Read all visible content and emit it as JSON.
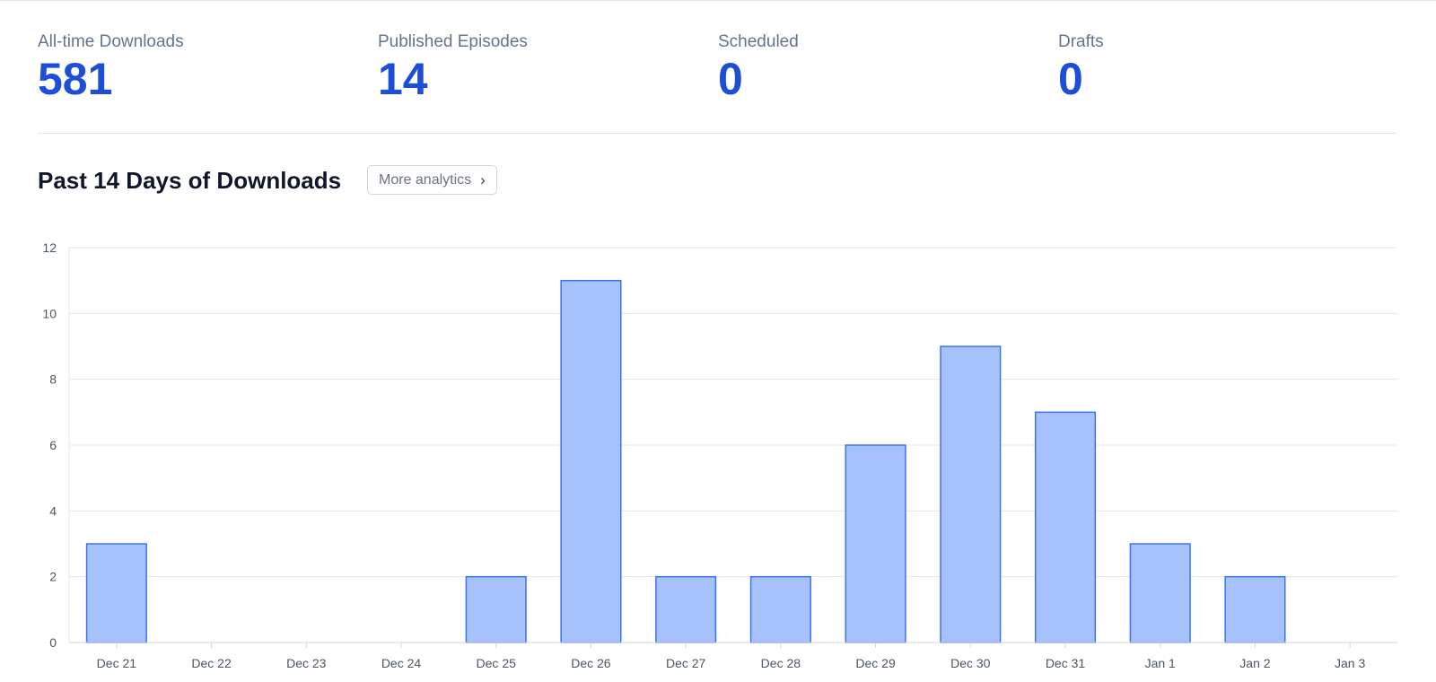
{
  "stats": [
    {
      "label": "All-time Downloads",
      "value": "581"
    },
    {
      "label": "Published Episodes",
      "value": "14"
    },
    {
      "label": "Scheduled",
      "value": "0"
    },
    {
      "label": "Drafts",
      "value": "0"
    }
  ],
  "section": {
    "title": "Past 14 Days of Downloads",
    "more_label": "More analytics",
    "chevron": "›"
  },
  "colors": {
    "accent": "#1d4ed8",
    "bar_fill": "#a7c1fa",
    "bar_stroke": "#3b74f0",
    "grid": "#e5e7eb"
  },
  "chart_data": {
    "type": "bar",
    "categories": [
      "Dec 21",
      "Dec 22",
      "Dec 23",
      "Dec 24",
      "Dec 25",
      "Dec 26",
      "Dec 27",
      "Dec 28",
      "Dec 29",
      "Dec 30",
      "Dec 31",
      "Jan 1",
      "Jan 2",
      "Jan 3"
    ],
    "values": [
      3,
      0,
      0,
      0,
      2,
      11,
      2,
      2,
      6,
      9,
      7,
      3,
      2,
      0
    ],
    "ylim": [
      0,
      12
    ],
    "yticks": [
      0,
      2,
      4,
      6,
      8,
      10,
      12
    ],
    "grid": true,
    "legend": "none",
    "title": "",
    "xlabel": "",
    "ylabel": ""
  }
}
